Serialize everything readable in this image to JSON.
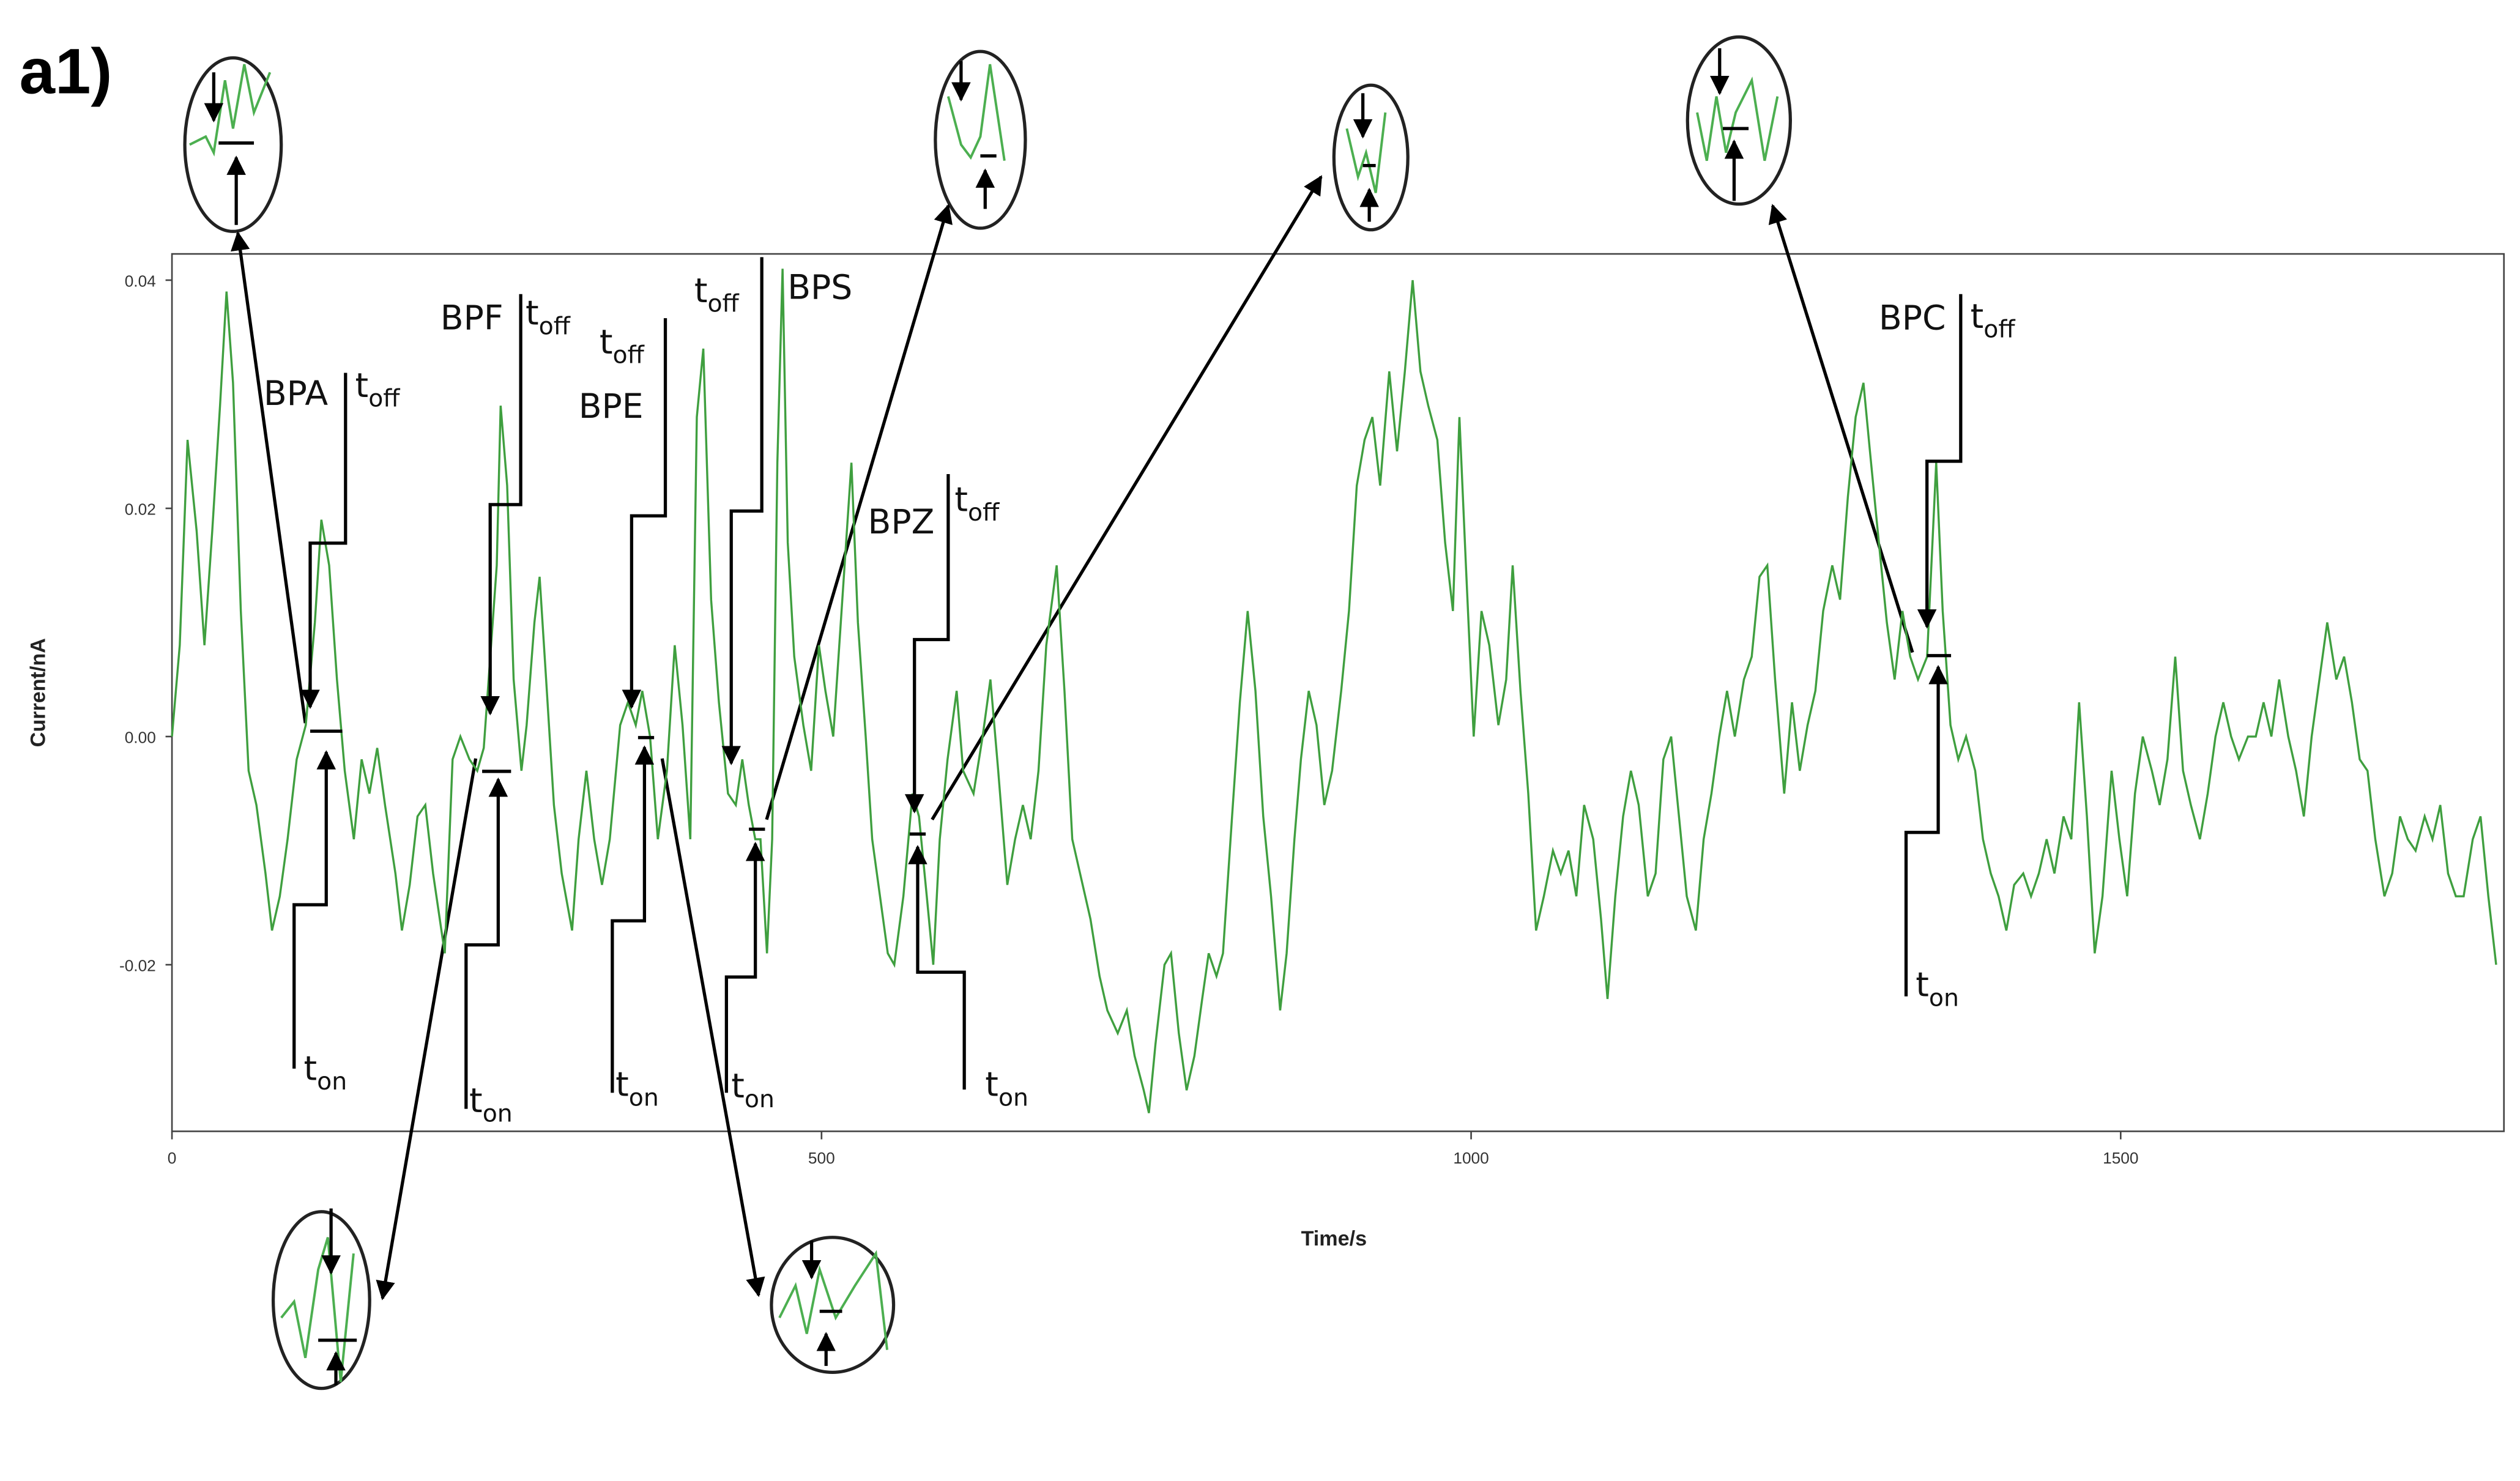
{
  "chart_data": {
    "type": "line",
    "panel_label": "a1)",
    "xlabel": "Time/s",
    "ylabel": "Current/nA",
    "xlim": [
      0,
      1795
    ],
    "ylim": [
      -0.0346,
      0.0423
    ],
    "xticks": [
      0,
      500,
      1000,
      1500
    ],
    "yticks": [
      -0.02,
      {
        "value": 0,
        "label": "0.00"
      },
      0.02,
      0.04
    ],
    "color": "#3f9f3f",
    "x": [
      0,
      6,
      12,
      19,
      25,
      31,
      37,
      42,
      47,
      53,
      59,
      65,
      72,
      77,
      83,
      89,
      96,
      103,
      110,
      115,
      121,
      127,
      133,
      140,
      146,
      152,
      158,
      164,
      172,
      177,
      183,
      189,
      195,
      201,
      210,
      216,
      222,
      229,
      235,
      240,
      245,
      250,
      253,
      258,
      263,
      269,
      273,
      279,
      283,
      288,
      294,
      300,
      308,
      313,
      319,
      325,
      331,
      337,
      345,
      351,
      357,
      362,
      368,
      374,
      381,
      387,
      393,
      399,
      404,
      409,
      415,
      421,
      428,
      434,
      439,
      444,
      449,
      453,
      458,
      462,
      466,
      470,
      474,
      479,
      486,
      492,
      498,
      503,
      509,
      516,
      523,
      528,
      534,
      539,
      545,
      551,
      556,
      563,
      570,
      575,
      581,
      586,
      591,
      597,
      604,
      609,
      617,
      624,
      630,
      636,
      643,
      649,
      655,
      661,
      667,
      673,
      681,
      687,
      693,
      699,
      707,
      714,
      720,
      728,
      735,
      741,
      748,
      752,
      757,
      764,
      769,
      775,
      781,
      787,
      793,
      798,
      804,
      809,
      816,
      822,
      828,
      834,
      840,
      846,
      853,
      858,
      864,
      869,
      875,
      881,
      887,
      893,
      900,
      906,
      912,
      918,
      924,
      930,
      937,
      943,
      949,
      955,
      961,
      967,
      974,
      980,
      986,
      991,
      996,
      1002,
      1008,
      1014,
      1021,
      1027,
      1032,
      1038,
      1044,
      1050,
      1056,
      1063,
      1069,
      1075,
      1081,
      1087,
      1094,
      1100,
      1105,
      1111,
      1117,
      1123,
      1129,
      1136,
      1142,
      1148,
      1154,
      1160,
      1166,
      1173,
      1179,
      1185,
      1191,
      1197,
      1203,
      1210,
      1216,
      1222,
      1228,
      1234,
      1241,
      1247,
      1253,
      1259,
      1265,
      1271,
      1278,
      1284,
      1290,
      1296,
      1302,
      1307,
      1313,
      1320,
      1326,
      1332,
      1338,
      1344,
      1351,
      1358,
      1363,
      1369,
      1375,
      1381,
      1388,
      1394,
      1400,
      1406,
      1412,
      1418,
      1425,
      1431,
      1437,
      1443,
      1449,
      1456,
      1462,
      1468,
      1474,
      1480,
      1486,
      1493,
      1499,
      1505,
      1511,
      1517,
      1524,
      1530,
      1536,
      1542,
      1548,
      1554,
      1561,
      1567,
      1573,
      1579,
      1585,
      1591,
      1598,
      1604,
      1610,
      1616,
      1622,
      1629,
      1635,
      1641,
      1647,
      1653,
      1659,
      1666,
      1672,
      1678,
      1684,
      1690,
      1696,
      1703,
      1709,
      1715,
      1721,
      1727,
      1734,
      1740,
      1746,
      1752,
      1758,
      1764,
      1771,
      1777,
      1783,
      1789
    ],
    "values": [
      0.0,
      0.008,
      0.026,
      0.018,
      0.008,
      0.018,
      0.029,
      0.039,
      0.031,
      0.011,
      -0.003,
      -0.006,
      -0.012,
      -0.017,
      -0.014,
      -0.009,
      -0.002,
      0.001,
      0.01,
      0.019,
      0.015,
      0.005,
      -0.003,
      -0.009,
      -0.002,
      -0.005,
      -0.001,
      -0.006,
      -0.012,
      -0.017,
      -0.013,
      -0.007,
      -0.006,
      -0.012,
      -0.019,
      -0.002,
      0.0,
      -0.002,
      -0.003,
      -0.001,
      0.007,
      0.015,
      0.029,
      0.022,
      0.005,
      -0.003,
      0.001,
      0.01,
      0.014,
      0.005,
      -0.006,
      -0.012,
      -0.017,
      -0.009,
      -0.003,
      -0.009,
      -0.013,
      -0.009,
      0.001,
      0.003,
      0.001,
      0.004,
      0.0,
      -0.009,
      -0.003,
      0.008,
      0.001,
      -0.009,
      0.028,
      0.034,
      0.012,
      0.003,
      -0.005,
      -0.006,
      -0.002,
      -0.006,
      -0.009,
      -0.009,
      -0.019,
      -0.009,
      0.024,
      0.041,
      0.017,
      0.007,
      0.001,
      -0.003,
      0.008,
      0.004,
      0.0,
      0.012,
      0.024,
      0.01,
      0.0,
      -0.009,
      -0.014,
      -0.019,
      -0.02,
      -0.014,
      -0.005,
      -0.007,
      -0.014,
      -0.02,
      -0.009,
      -0.002,
      0.004,
      -0.003,
      -0.005,
      0.0,
      0.005,
      -0.003,
      -0.013,
      -0.009,
      -0.006,
      -0.009,
      -0.003,
      0.008,
      0.015,
      0.004,
      -0.009,
      -0.012,
      -0.016,
      -0.021,
      -0.024,
      -0.026,
      -0.024,
      -0.028,
      -0.031,
      -0.033,
      -0.027,
      -0.02,
      -0.019,
      -0.026,
      -0.031,
      -0.028,
      -0.023,
      -0.019,
      -0.021,
      -0.019,
      -0.007,
      0.003,
      0.011,
      0.004,
      -0.007,
      -0.014,
      -0.024,
      -0.019,
      -0.009,
      -0.002,
      0.004,
      0.001,
      -0.006,
      -0.003,
      0.004,
      0.011,
      0.022,
      0.026,
      0.028,
      0.022,
      0.032,
      0.025,
      0.032,
      0.04,
      0.032,
      0.029,
      0.026,
      0.017,
      0.011,
      0.028,
      0.015,
      0.0,
      0.011,
      0.008,
      0.001,
      0.005,
      0.015,
      0.004,
      -0.005,
      -0.017,
      -0.014,
      -0.01,
      -0.012,
      -0.01,
      -0.014,
      -0.006,
      -0.009,
      -0.016,
      -0.023,
      -0.014,
      -0.007,
      -0.003,
      -0.006,
      -0.014,
      -0.012,
      -0.002,
      0.0,
      -0.007,
      -0.014,
      -0.017,
      -0.009,
      -0.005,
      0.0,
      0.004,
      0.0,
      0.005,
      0.007,
      0.014,
      0.015,
      0.005,
      -0.005,
      0.003,
      -0.003,
      0.001,
      0.004,
      0.011,
      0.015,
      0.012,
      0.021,
      0.028,
      0.031,
      0.025,
      0.018,
      0.01,
      0.005,
      0.011,
      0.007,
      0.005,
      0.007,
      0.024,
      0.011,
      0.001,
      -0.002,
      0.0,
      -0.003,
      -0.009,
      -0.012,
      -0.014,
      -0.017,
      -0.013,
      -0.012,
      -0.014,
      -0.012,
      -0.009,
      -0.012,
      -0.007,
      -0.009,
      0.003,
      -0.007,
      -0.019,
      -0.014,
      -0.003,
      -0.009,
      -0.014,
      -0.005,
      0.0,
      -0.003,
      -0.006,
      -0.002,
      0.007,
      -0.003,
      -0.006,
      -0.009,
      -0.005,
      0.0,
      0.003,
      0.0,
      -0.002,
      0.0,
      0.0,
      0.003,
      0.0,
      0.005,
      0.0,
      -0.003,
      -0.007,
      0.0,
      0.005,
      0.01,
      0.005,
      0.007,
      0.003,
      -0.002,
      -0.003,
      -0.009,
      -0.014,
      -0.012,
      -0.007,
      -0.009,
      -0.01,
      -0.007,
      -0.009,
      -0.006,
      -0.012,
      -0.014,
      -0.014,
      -0.009,
      -0.007,
      -0.014,
      -0.02
    ],
    "annotations": [
      {
        "label": "BPA",
        "t_off": {
          "t": "t",
          "sub": "off"
        },
        "t_on": {
          "t": "t",
          "sub": "on"
        }
      },
      {
        "label": "BPF",
        "t_off": {
          "t": "t",
          "sub": "off"
        },
        "t_on": {
          "t": "t",
          "sub": "on"
        }
      },
      {
        "label": "BPE",
        "t_off": {
          "t": "t",
          "sub": "off"
        },
        "t_on": {
          "t": "t",
          "sub": "on"
        }
      },
      {
        "label": "BPS",
        "t_off": {
          "t": "t",
          "sub": "off"
        },
        "t_on": {
          "t": "t",
          "sub": "on"
        }
      },
      {
        "label": "BPZ",
        "t_off": {
          "t": "t",
          "sub": "off"
        },
        "t_on": {
          "t": "t",
          "sub": "on"
        }
      },
      {
        "label": "BPC",
        "t_off": {
          "t": "t",
          "sub": "off"
        },
        "t_on": {
          "t": "t",
          "sub": "on"
        }
      }
    ]
  }
}
